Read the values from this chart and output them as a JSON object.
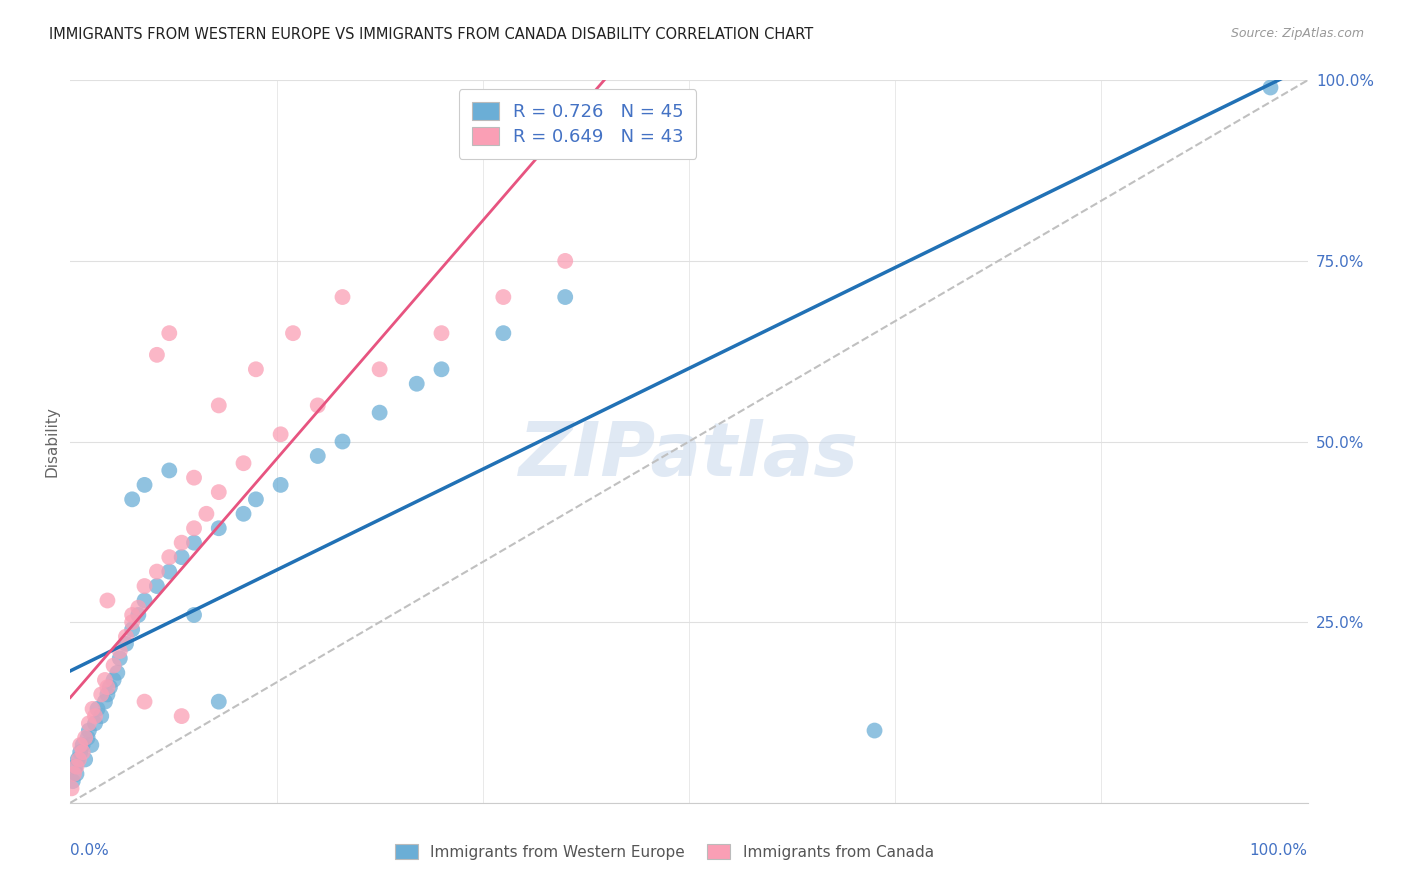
{
  "title": "IMMIGRANTS FROM WESTERN EUROPE VS IMMIGRANTS FROM CANADA DISABILITY CORRELATION CHART",
  "source": "Source: ZipAtlas.com",
  "ylabel": "Disability",
  "blue_R": 0.726,
  "blue_N": 45,
  "pink_R": 0.649,
  "pink_N": 43,
  "blue_color": "#6baed6",
  "pink_color": "#fa9fb5",
  "blue_line_color": "#2171b5",
  "pink_line_color": "#e75480",
  "dashed_line_color": "#c0c0c0",
  "watermark": "ZIPatlas",
  "legend_blue_label": "R = 0.726   N = 45",
  "legend_pink_label": "R = 0.649   N = 43",
  "bottom_legend_blue": "Immigrants from Western Europe",
  "bottom_legend_pink": "Immigrants from Canada",
  "blue_scatter_x": [
    0.2,
    0.4,
    0.5,
    0.6,
    0.8,
    1.0,
    1.2,
    1.4,
    1.5,
    1.7,
    2.0,
    2.2,
    2.5,
    2.8,
    3.0,
    3.2,
    3.5,
    3.8,
    4.0,
    4.5,
    5.0,
    5.5,
    6.0,
    7.0,
    8.0,
    9.0,
    10.0,
    12.0,
    14.0,
    15.0,
    17.0,
    20.0,
    22.0,
    25.0,
    28.0,
    30.0,
    35.0,
    40.0,
    5.0,
    6.0,
    8.0,
    10.0,
    12.0,
    65.0,
    97.0
  ],
  "blue_scatter_y": [
    3,
    5,
    4,
    6,
    7,
    8,
    6,
    9,
    10,
    8,
    11,
    13,
    12,
    14,
    15,
    16,
    17,
    18,
    20,
    22,
    24,
    26,
    28,
    30,
    32,
    34,
    36,
    38,
    40,
    42,
    44,
    48,
    50,
    54,
    58,
    60,
    65,
    70,
    42,
    44,
    46,
    26,
    14,
    10,
    99
  ],
  "pink_scatter_x": [
    0.1,
    0.3,
    0.5,
    0.7,
    0.8,
    1.0,
    1.2,
    1.5,
    1.8,
    2.0,
    2.5,
    2.8,
    3.0,
    3.5,
    4.0,
    4.5,
    5.0,
    5.5,
    6.0,
    7.0,
    8.0,
    9.0,
    10.0,
    11.0,
    12.0,
    14.0,
    17.0,
    20.0,
    25.0,
    30.0,
    35.0,
    40.0,
    7.0,
    8.0,
    10.0,
    12.0,
    15.0,
    18.0,
    22.0,
    5.0,
    3.0,
    6.0,
    9.0
  ],
  "pink_scatter_y": [
    2,
    4,
    5,
    6,
    8,
    7,
    9,
    11,
    13,
    12,
    15,
    17,
    16,
    19,
    21,
    23,
    25,
    27,
    30,
    32,
    34,
    36,
    38,
    40,
    43,
    47,
    51,
    55,
    60,
    65,
    70,
    75,
    62,
    65,
    45,
    55,
    60,
    65,
    70,
    26,
    28,
    14,
    12
  ],
  "background_color": "#ffffff",
  "grid_color": "#e0e0e0",
  "title_color": "#222222",
  "tick_label_color": "#4472c4"
}
